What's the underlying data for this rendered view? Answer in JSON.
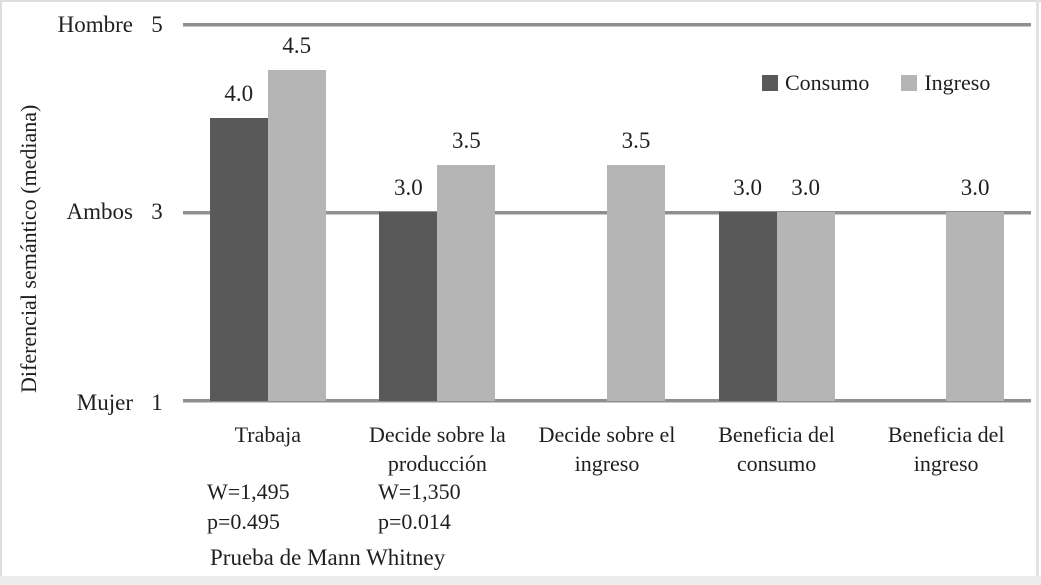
{
  "chart_data": {
    "type": "bar",
    "title": "",
    "categories": [
      "Trabaja",
      "Decide sobre la producción",
      "Decide sobre el ingreso",
      "Beneficia del consumo",
      "Beneficia del ingreso"
    ],
    "series": [
      {
        "name": "Consumo",
        "color": "#595959",
        "values": [
          4.0,
          3.0,
          null,
          3.0,
          null
        ]
      },
      {
        "name": "Ingreso",
        "color": "#b5b5b5",
        "values": [
          4.5,
          3.5,
          3.5,
          3.0,
          3.0
        ]
      }
    ],
    "xlabel": "",
    "ylabel": "Diferencial semántico (mediana)",
    "ylim": [
      1,
      5
    ],
    "yticks": [
      {
        "label": "Mujer",
        "value": "1"
      },
      {
        "label": "Ambos",
        "value": "3"
      },
      {
        "label": "Hombre",
        "value": "5"
      }
    ],
    "grid": "horizontal",
    "legend_position": "top-right",
    "value_labels": true
  },
  "y_axis": {
    "title": "Diferencial semántico (mediana)"
  },
  "legend": {
    "items": [
      {
        "label": "Consumo",
        "color": "#595959"
      },
      {
        "label": "Ingreso",
        "color": "#b5b5b5"
      }
    ]
  },
  "annotations": [
    {
      "category_index": 0,
      "text": "W=1,495\np=0.495"
    },
    {
      "category_index": 1,
      "text": "W=1,350\np=0.014"
    }
  ],
  "footnote": "Prueba de Mann Whitney",
  "colors": {
    "consumo_bar": "#595959",
    "ingreso_bar": "#b5b5b5",
    "gridline": "#8f8f8f",
    "text": "#1f1f1f",
    "frame": "#dedede"
  }
}
